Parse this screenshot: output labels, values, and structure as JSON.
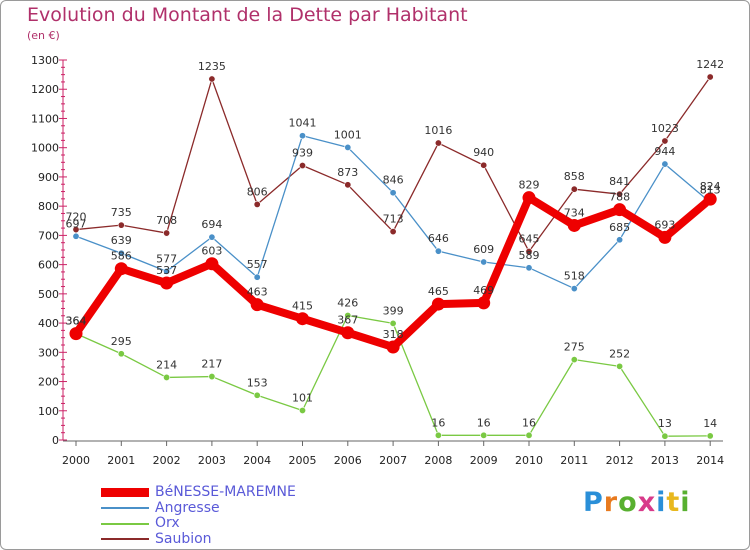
{
  "header": {
    "title": "Evolution du Montant de la Dette par Habitant",
    "unit": "(en €)"
  },
  "logo": {
    "text": "Proxiti",
    "letter_colors": [
      "#2a8fd8",
      "#e87a1e",
      "#58b030",
      "#d83a8a",
      "#2a8fd8",
      "#e8b81e",
      "#58b030"
    ]
  },
  "chart_data": {
    "type": "line",
    "title": "Evolution du Montant de la Dette par Habitant",
    "subtitle": "(en €)",
    "xlabel": "",
    "ylabel": "",
    "categories": [
      "2000",
      "2001",
      "2002",
      "2003",
      "2004",
      "2005",
      "2006",
      "2007",
      "2008",
      "2009",
      "2010",
      "2011",
      "2012",
      "2013",
      "2014"
    ],
    "ylim": [
      0,
      1300
    ],
    "yticks": [
      0,
      100,
      200,
      300,
      400,
      500,
      600,
      700,
      800,
      900,
      1000,
      1100,
      1200,
      1300
    ],
    "grid": false,
    "legend_position": "bottom-left",
    "series": [
      {
        "name": "Saubion",
        "color": "#8b2a2a",
        "values": [
          720,
          735,
          708,
          1235,
          806,
          939,
          873,
          713,
          1016,
          940,
          645,
          858,
          841,
          1023,
          1242
        ]
      },
      {
        "name": "Angresse",
        "color": "#4a90c8",
        "values": [
          697,
          639,
          577,
          694,
          557,
          1041,
          1001,
          846,
          646,
          609,
          589,
          518,
          685,
          944,
          813
        ]
      },
      {
        "name": "Orx",
        "color": "#7ac943",
        "values": [
          364,
          295,
          214,
          217,
          153,
          101,
          426,
          399,
          16,
          16,
          16,
          275,
          252,
          13,
          14
        ]
      },
      {
        "name": "BéNESSE-MAREMNE",
        "color": "#ee0000",
        "values": [
          364,
          586,
          537,
          603,
          463,
          415,
          367,
          318,
          465,
          469,
          829,
          734,
          788,
          693,
          824
        ]
      }
    ],
    "legend": [
      "BéNESSE-MAREMNE",
      "Angresse",
      "Orx",
      "Saubion"
    ]
  }
}
